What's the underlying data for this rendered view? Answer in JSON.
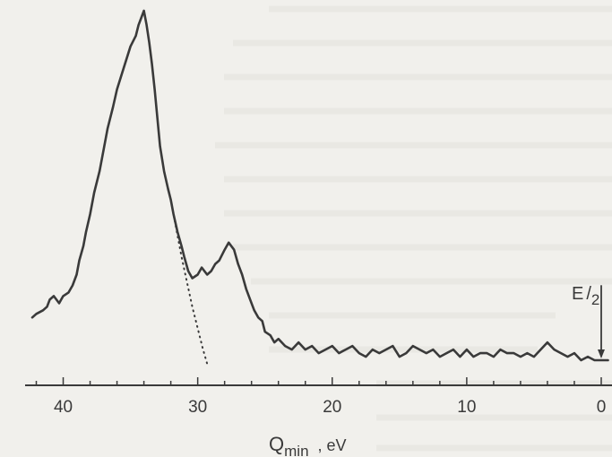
{
  "chart_data": {
    "type": "line",
    "title": "",
    "xlabel_main": "Q",
    "xlabel_sub": "min",
    "xlabel_unit": ", eV",
    "ylabel": "",
    "x_reversed": true,
    "xlim": [
      42.5,
      -0.8
    ],
    "ylim": [
      0,
      1.0
    ],
    "grid": false,
    "x_ticks": [
      40,
      30,
      20,
      10,
      0
    ],
    "x_tick_labels": [
      "40",
      "30",
      "20",
      "10",
      "0"
    ],
    "series": [
      {
        "style": "solid",
        "x": [
          42.3,
          42.0,
          41.5,
          41.2,
          41.0,
          40.7,
          40.3,
          40.0,
          39.6,
          39.3,
          39.0,
          38.8,
          38.5,
          38.3,
          38.0,
          37.7,
          37.3,
          37.0,
          36.7,
          36.3,
          36.0,
          35.5,
          35.0,
          34.6,
          34.4,
          34.2,
          34.0,
          33.8,
          33.6,
          33.4,
          33.2,
          33.0,
          32.8,
          32.5,
          32.2,
          32.0,
          31.8,
          31.5,
          31.2,
          31.0,
          30.7,
          30.4,
          30.0,
          29.7,
          29.3,
          29.0,
          28.7,
          28.4,
          28.0,
          27.7,
          27.3,
          27.0,
          26.7,
          26.4,
          26.1,
          25.8,
          25.5,
          25.2,
          25.0,
          24.6,
          24.3,
          24.0,
          23.5,
          23.0,
          22.5,
          22.0,
          21.5,
          21.0,
          20.5,
          20.0,
          19.5,
          19.0,
          18.5,
          18.0,
          17.5,
          17.0,
          16.5,
          16.0,
          15.5,
          15.0,
          14.5,
          14.0,
          13.5,
          13.0,
          12.5,
          12.0,
          11.5,
          11.0,
          10.5,
          10.0,
          9.5,
          9.0,
          8.5,
          8.0,
          7.5,
          7.0,
          6.5,
          6.0,
          5.5,
          5.0,
          4.5,
          4.0,
          3.5,
          3.0,
          2.5,
          2.0,
          1.5,
          1.0,
          0.5,
          0.0,
          -0.5
        ],
        "y": [
          0.14,
          0.15,
          0.16,
          0.17,
          0.19,
          0.2,
          0.18,
          0.2,
          0.21,
          0.23,
          0.26,
          0.3,
          0.34,
          0.38,
          0.43,
          0.49,
          0.55,
          0.61,
          0.67,
          0.73,
          0.78,
          0.84,
          0.9,
          0.93,
          0.96,
          0.98,
          1.0,
          0.96,
          0.91,
          0.85,
          0.78,
          0.7,
          0.62,
          0.55,
          0.5,
          0.47,
          0.43,
          0.38,
          0.34,
          0.31,
          0.27,
          0.25,
          0.26,
          0.28,
          0.26,
          0.27,
          0.29,
          0.3,
          0.33,
          0.35,
          0.33,
          0.29,
          0.26,
          0.22,
          0.19,
          0.16,
          0.14,
          0.13,
          0.1,
          0.09,
          0.07,
          0.08,
          0.06,
          0.05,
          0.07,
          0.05,
          0.06,
          0.04,
          0.05,
          0.06,
          0.04,
          0.05,
          0.06,
          0.04,
          0.03,
          0.05,
          0.04,
          0.05,
          0.06,
          0.03,
          0.04,
          0.06,
          0.05,
          0.04,
          0.05,
          0.03,
          0.04,
          0.05,
          0.03,
          0.05,
          0.03,
          0.04,
          0.04,
          0.03,
          0.05,
          0.04,
          0.04,
          0.03,
          0.04,
          0.03,
          0.05,
          0.07,
          0.05,
          0.04,
          0.03,
          0.04,
          0.02,
          0.03,
          0.02,
          0.02,
          0.02
        ]
      },
      {
        "style": "dotted",
        "x": [
          32.0,
          31.6,
          31.2,
          30.8,
          30.4,
          30.0,
          29.6,
          29.3
        ],
        "y": [
          0.47,
          0.39,
          0.31,
          0.24,
          0.17,
          0.11,
          0.05,
          0.01
        ]
      }
    ],
    "annotations": [
      {
        "text_main": "E",
        "text_sub": "2",
        "text_sep": "/",
        "arrow_x": 0.0,
        "arrow_from_y": 0.15,
        "arrow_to_y": 0.03
      }
    ]
  },
  "ink_color": "#3a3a3a",
  "paper_color": "#f1f0ec"
}
